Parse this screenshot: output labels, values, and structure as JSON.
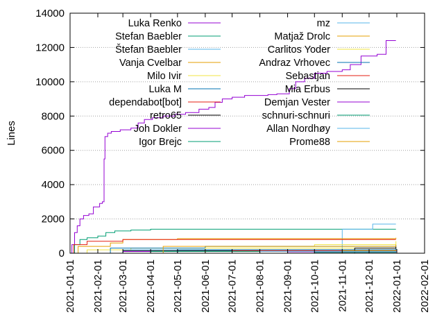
{
  "chart_data": {
    "type": "line",
    "title": "",
    "xlabel": "",
    "ylabel": "Lines",
    "grid": true,
    "legend_position": "top",
    "xlim": [
      "2021-01-01",
      "2022-02-01"
    ],
    "ylim": [
      0,
      14000
    ],
    "xticks": [
      "2021-01-01",
      "2021-02-01",
      "2021-03-01",
      "2021-04-01",
      "2021-05-01",
      "2021-06-01",
      "2021-07-01",
      "2021-08-01",
      "2021-09-01",
      "2021-10-01",
      "2021-11-01",
      "2021-12-01",
      "2022-01-01",
      "2022-02-01"
    ],
    "yticks": [
      0,
      2000,
      4000,
      6000,
      8000,
      10000,
      12000,
      14000
    ],
    "series": [
      {
        "name": "Luka Renko",
        "color": "#9400d3",
        "points": [
          [
            "2021-01-01",
            0
          ],
          [
            "2021-01-03",
            500
          ],
          [
            "2021-01-06",
            1200
          ],
          [
            "2021-01-09",
            1600
          ],
          [
            "2021-01-12",
            2000
          ],
          [
            "2021-01-16",
            2200
          ],
          [
            "2021-01-22",
            2300
          ],
          [
            "2021-01-27",
            2700
          ],
          [
            "2021-02-03",
            2900
          ],
          [
            "2021-02-06",
            3000
          ],
          [
            "2021-02-08",
            5500
          ],
          [
            "2021-02-09",
            6800
          ],
          [
            "2021-02-12",
            7000
          ],
          [
            "2021-02-16",
            7100
          ],
          [
            "2021-02-26",
            7200
          ],
          [
            "2021-03-10",
            7300
          ],
          [
            "2021-03-18",
            7600
          ],
          [
            "2021-03-25",
            7800
          ],
          [
            "2021-04-03",
            7900
          ],
          [
            "2021-04-15",
            8000
          ],
          [
            "2021-04-28",
            8100
          ],
          [
            "2021-05-10",
            8200
          ],
          [
            "2021-05-25",
            8400
          ],
          [
            "2021-06-05",
            8500
          ],
          [
            "2021-06-12",
            8800
          ],
          [
            "2021-06-20",
            9000
          ],
          [
            "2021-07-01",
            9100
          ],
          [
            "2021-07-15",
            9200
          ],
          [
            "2021-08-10",
            9250
          ],
          [
            "2021-08-20",
            9300
          ],
          [
            "2021-09-03",
            9600
          ],
          [
            "2021-09-10",
            10000
          ],
          [
            "2021-09-20",
            10200
          ],
          [
            "2021-10-01",
            10500
          ],
          [
            "2021-10-15",
            10600
          ],
          [
            "2021-11-01",
            10700
          ],
          [
            "2021-11-10",
            11000
          ],
          [
            "2021-11-22",
            11500
          ],
          [
            "2021-12-10",
            11600
          ],
          [
            "2021-12-20",
            12400
          ],
          [
            "2021-12-31",
            12400
          ]
        ]
      },
      {
        "name": "Stefan Baebler",
        "color": "#009e73",
        "points": [
          [
            "2021-01-01",
            0
          ],
          [
            "2021-01-06",
            500
          ],
          [
            "2021-01-12",
            800
          ],
          [
            "2021-01-20",
            900
          ],
          [
            "2021-02-01",
            1000
          ],
          [
            "2021-02-10",
            1200
          ],
          [
            "2021-02-20",
            1300
          ],
          [
            "2021-03-10",
            1350
          ],
          [
            "2021-04-01",
            1400
          ],
          [
            "2021-12-31",
            1400
          ]
        ]
      },
      {
        "name": "Štefan Baebler",
        "color": "#56b4e9",
        "points": [
          [
            "2021-01-01",
            0
          ],
          [
            "2021-10-30",
            0
          ],
          [
            "2021-11-01",
            1400
          ],
          [
            "2021-12-01",
            1400
          ],
          [
            "2021-12-05",
            1700
          ],
          [
            "2021-12-31",
            1700
          ]
        ]
      },
      {
        "name": "Vanja Cvelbar",
        "color": "#e69f00",
        "points": [
          [
            "2021-01-01",
            0
          ],
          [
            "2021-01-10",
            400
          ],
          [
            "2021-02-15",
            600
          ],
          [
            "2021-03-01",
            800
          ],
          [
            "2021-05-01",
            850
          ],
          [
            "2021-12-31",
            900
          ]
        ]
      },
      {
        "name": "Milo Ivir",
        "color": "#f0e442",
        "points": [
          [
            "2021-01-01",
            0
          ],
          [
            "2021-01-20",
            200
          ],
          [
            "2021-03-10",
            300
          ],
          [
            "2021-06-01",
            400
          ],
          [
            "2021-10-01",
            500
          ],
          [
            "2021-12-31",
            700
          ]
        ]
      },
      {
        "name": "Luka M",
        "color": "#0072b2",
        "points": [
          [
            "2021-01-01",
            0
          ],
          [
            "2021-02-15",
            300
          ],
          [
            "2021-06-01",
            400
          ],
          [
            "2021-12-31",
            450
          ]
        ]
      },
      {
        "name": "dependabot[bot]",
        "color": "#e51e10",
        "points": [
          [
            "2021-01-01",
            0
          ],
          [
            "2021-01-05",
            500
          ],
          [
            "2021-01-20",
            700
          ],
          [
            "2021-03-01",
            800
          ],
          [
            "2021-12-31",
            800
          ]
        ]
      },
      {
        "name": "retro65",
        "color": "#000000",
        "points": [
          [
            "2021-01-01",
            0
          ],
          [
            "2021-03-01",
            150
          ],
          [
            "2021-08-01",
            200
          ],
          [
            "2021-12-31",
            300
          ]
        ]
      },
      {
        "name": "Joh Dokler",
        "color": "#9400d3",
        "points": [
          [
            "2021-01-01",
            0
          ],
          [
            "2021-03-01",
            100
          ],
          [
            "2021-12-31",
            150
          ]
        ]
      },
      {
        "name": "Igor Brejc",
        "color": "#009e73",
        "points": [
          [
            "2021-01-01",
            0
          ],
          [
            "2021-04-01",
            100
          ],
          [
            "2021-12-31",
            120
          ]
        ]
      },
      {
        "name": "mz",
        "color": "#56b4e9",
        "points": [
          [
            "2021-01-01",
            0
          ],
          [
            "2021-03-01",
            200
          ],
          [
            "2021-12-31",
            250
          ]
        ]
      },
      {
        "name": "Matjaž Drolc",
        "color": "#e69f00",
        "points": [
          [
            "2021-01-01",
            0
          ],
          [
            "2021-04-15",
            400
          ],
          [
            "2021-12-31",
            500
          ]
        ]
      },
      {
        "name": "Carlitos Yoder",
        "color": "#f0e442",
        "points": [
          [
            "2021-01-01",
            0
          ],
          [
            "2021-06-01",
            300
          ],
          [
            "2021-12-31",
            350
          ]
        ]
      },
      {
        "name": "Andraz Vrhovec",
        "color": "#0072b2",
        "points": [
          [
            "2021-01-01",
            0
          ],
          [
            "2021-05-01",
            200
          ],
          [
            "2021-12-31",
            250
          ]
        ]
      },
      {
        "name": "Sebastjan",
        "color": "#e51e10",
        "points": [
          [
            "2021-01-01",
            0
          ],
          [
            "2021-07-01",
            150
          ],
          [
            "2021-12-31",
            200
          ]
        ]
      },
      {
        "name": "Mia Erbus",
        "color": "#000000",
        "points": [
          [
            "2021-01-01",
            0
          ],
          [
            "2021-11-15",
            300
          ],
          [
            "2021-12-31",
            380
          ]
        ]
      },
      {
        "name": "Demjan Vester",
        "color": "#9400d3",
        "points": [
          [
            "2021-01-01",
            0
          ],
          [
            "2021-09-01",
            80
          ],
          [
            "2021-12-31",
            100
          ]
        ]
      },
      {
        "name": "schnuri-schnuri",
        "color": "#009e73",
        "points": [
          [
            "2021-01-01",
            0
          ],
          [
            "2021-10-01",
            50
          ],
          [
            "2021-12-31",
            60
          ]
        ]
      },
      {
        "name": "Allan Nordhøy",
        "color": "#56b4e9",
        "points": [
          [
            "2021-01-01",
            0
          ],
          [
            "2021-08-01",
            100
          ],
          [
            "2021-12-31",
            120
          ]
        ]
      },
      {
        "name": "Prome88",
        "color": "#e69f00",
        "points": [
          [
            "2021-01-01",
            0
          ],
          [
            "2021-11-01",
            150
          ],
          [
            "2021-12-31",
            200
          ]
        ]
      }
    ]
  }
}
